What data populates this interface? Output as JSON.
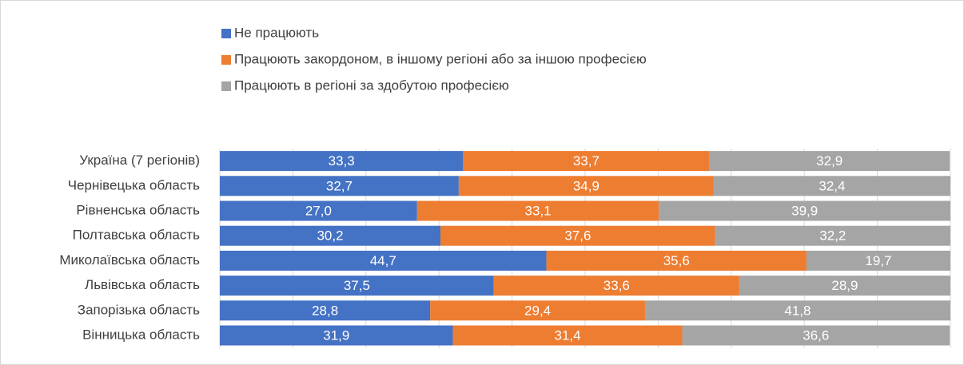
{
  "chart_data": {
    "type": "stacked_bar_horizontal",
    "categories": [
      "Україна (7 регіонів)",
      "Чернівецька область",
      "Рівненська область",
      "Полтавська область",
      "Миколаївська область",
      "Львівська область",
      "Запорізька область",
      "Вінницька область"
    ],
    "series": [
      {
        "name": "Не працюють",
        "color": "#4472c4",
        "values": [
          33.3,
          32.7,
          27.0,
          30.2,
          44.7,
          37.5,
          28.8,
          31.9
        ],
        "value_labels": [
          "33,3",
          "32,7",
          "27,0",
          "30,2",
          "44,7",
          "37,5",
          "28,8",
          "31,9"
        ]
      },
      {
        "name": "Працюють закордоном, в іншому регіоні або за іншою професією",
        "color": "#ed7d31",
        "values": [
          33.7,
          34.9,
          33.1,
          37.6,
          35.6,
          33.6,
          29.4,
          31.4
        ],
        "value_labels": [
          "33,7",
          "34,9",
          "33,1",
          "37,6",
          "35,6",
          "33,6",
          "29,4",
          "31,4"
        ]
      },
      {
        "name": "Працюють в регіоні за здобутою професією",
        "color": "#a5a5a5",
        "values": [
          32.9,
          32.4,
          39.9,
          32.2,
          19.7,
          28.9,
          41.8,
          36.6
        ],
        "value_labels": [
          "32,9",
          "32,4",
          "39,9",
          "32,2",
          "19,7",
          "28,9",
          "41,8",
          "36,6"
        ]
      }
    ],
    "xlim": [
      0,
      100
    ],
    "xticks": [
      0,
      10,
      20,
      30,
      40,
      50,
      60,
      70,
      80,
      90,
      100
    ],
    "grid": true,
    "legend": "top"
  }
}
